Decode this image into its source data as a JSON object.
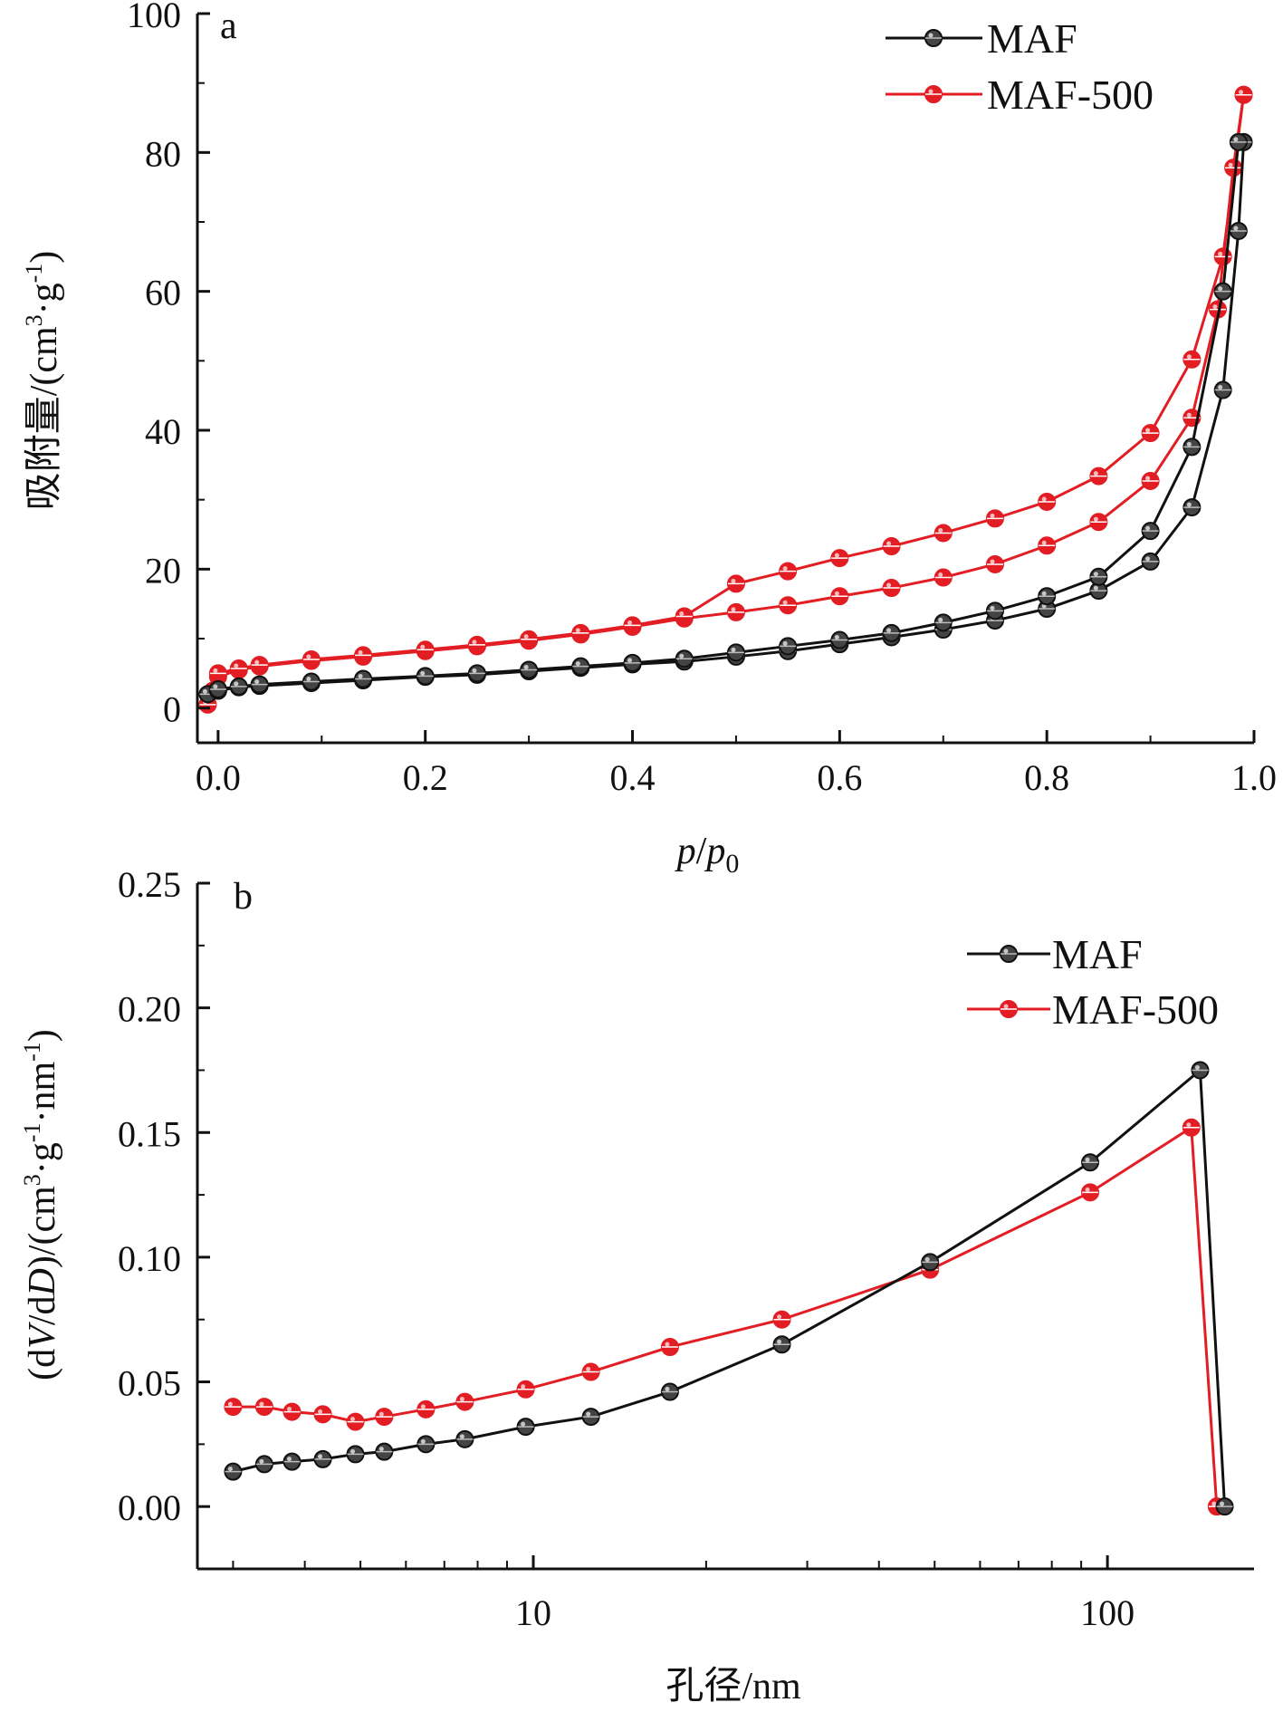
{
  "chart_data": [
    {
      "type": "line",
      "panel_label": "a",
      "xlabel": "p/p0",
      "xlabel_parts": {
        "p": "p",
        "slash": "/",
        "p0_base": "p",
        "p0_sub": "0"
      },
      "ylabel": "吸附量/(cm3·g-1)",
      "ylabel_parts": {
        "main": "吸附量/(cm",
        "sup1": "3",
        "mid": "·g",
        "sup2": "-1",
        "end": ")"
      },
      "xlim": [
        -0.02,
        1.0
      ],
      "ylim": [
        -5,
        100
      ],
      "xticks": [
        "0.0",
        "0.2",
        "0.4",
        "0.6",
        "0.8",
        "1.0"
      ],
      "xtick_values": [
        0,
        0.2,
        0.4,
        0.6,
        0.8,
        1.0
      ],
      "yticks": [
        "0",
        "20",
        "40",
        "60",
        "80",
        "100"
      ],
      "ytick_values": [
        0,
        20,
        40,
        60,
        80,
        100
      ],
      "legend_position": "top-right",
      "series": [
        {
          "name": "MAF",
          "color": "#111111",
          "marker_fill": "#444444",
          "x": [
            -0.01,
            0.0,
            0.02,
            0.04,
            0.09,
            0.14,
            0.2,
            0.25,
            0.3,
            0.35,
            0.4,
            0.45,
            0.5,
            0.55,
            0.6,
            0.65,
            0.7,
            0.75,
            0.8,
            0.85,
            0.9,
            0.94,
            0.97,
            0.985,
            0.99,
            0.985,
            0.97,
            0.94,
            0.9,
            0.85,
            0.8,
            0.75,
            0.7,
            0.65,
            0.6,
            0.55,
            0.5,
            0.45,
            0.4,
            0.35,
            0.3,
            0.25,
            0.2,
            0.14,
            0.09,
            0.04,
            0.02,
            0.0
          ],
          "y": [
            2.0,
            2.5,
            3.0,
            3.2,
            3.6,
            4.0,
            4.5,
            4.8,
            5.3,
            5.8,
            6.3,
            6.7,
            7.4,
            8.2,
            9.2,
            10.2,
            11.3,
            12.6,
            14.3,
            16.9,
            21.1,
            28.9,
            45.8,
            68.7,
            81.5,
            81.5,
            60.0,
            37.6,
            25.5,
            18.9,
            16.1,
            14.0,
            12.3,
            10.8,
            9.8,
            8.9,
            8.0,
            7.1,
            6.5,
            6.0,
            5.5,
            5.0,
            4.6,
            4.2,
            3.8,
            3.4,
            3.1,
            2.7
          ]
        },
        {
          "name": "MAF-500",
          "color": "#e21d23",
          "marker_fill": "#e21d23",
          "x": [
            -0.01,
            -0.005,
            0.0,
            0.02,
            0.04,
            0.09,
            0.14,
            0.2,
            0.25,
            0.3,
            0.35,
            0.4,
            0.45,
            0.5,
            0.55,
            0.6,
            0.65,
            0.7,
            0.75,
            0.8,
            0.85,
            0.9,
            0.94,
            0.965,
            0.98,
            0.99,
            0.99,
            0.97,
            0.94,
            0.9,
            0.85,
            0.8,
            0.75,
            0.7,
            0.65,
            0.6,
            0.55,
            0.5,
            0.45,
            0.4,
            0.35,
            0.3,
            0.25,
            0.2,
            0.14,
            0.09,
            0.04,
            0.02,
            0.0
          ],
          "y": [
            0.5,
            2.5,
            4.5,
            5.5,
            6.0,
            6.8,
            7.4,
            8.2,
            8.9,
            9.7,
            10.6,
            11.7,
            12.9,
            13.8,
            14.8,
            16.1,
            17.3,
            18.8,
            20.7,
            23.4,
            26.8,
            32.7,
            41.8,
            57.4,
            77.8,
            88.3,
            88.3,
            65.0,
            50.2,
            39.6,
            33.4,
            29.7,
            27.3,
            25.2,
            23.3,
            21.6,
            19.7,
            17.9,
            13.2,
            11.9,
            10.8,
            9.9,
            9.1,
            8.4,
            7.6,
            7.0,
            6.2,
            5.7,
            5.0
          ]
        }
      ]
    },
    {
      "type": "line",
      "panel_label": "b",
      "xlabel": "孔径/nm",
      "ylabel": "(dV/dD)/(cm3·g-1·nm-1)",
      "ylabel_parts": {
        "a": "(d",
        "V": "V",
        "b": "/d",
        "D": "D",
        "c": ")/(cm",
        "s1": "3",
        "d": "·g",
        "s2": "-1",
        "e": "·nm",
        "s3": "-1",
        "f": ")"
      },
      "x_scale": "log",
      "xlim": [
        2.6,
        180
      ],
      "ylim": [
        -0.025,
        0.25
      ],
      "xticks": [
        "10",
        "100"
      ],
      "xtick_values": [
        10,
        100
      ],
      "yticks": [
        "0.00",
        "0.05",
        "0.10",
        "0.15",
        "0.20",
        "0.25"
      ],
      "ytick_values": [
        0,
        0.05,
        0.1,
        0.15,
        0.2,
        0.25
      ],
      "legend_position": "top-right",
      "series": [
        {
          "name": "MAF",
          "color": "#111111",
          "marker_fill": "#444444",
          "x": [
            3.0,
            3.4,
            3.8,
            4.3,
            4.9,
            5.5,
            6.5,
            7.6,
            9.7,
            12.6,
            17.3,
            27.1,
            49.1,
            93.3,
            145.0,
            160.0
          ],
          "y": [
            0.014,
            0.017,
            0.018,
            0.019,
            0.021,
            0.022,
            0.025,
            0.027,
            0.032,
            0.036,
            0.046,
            0.065,
            0.098,
            0.138,
            0.175,
            0.0
          ]
        },
        {
          "name": "MAF-500",
          "color": "#e21d23",
          "marker_fill": "#e21d23",
          "x": [
            3.0,
            3.4,
            3.8,
            4.3,
            4.9,
            5.5,
            6.5,
            7.6,
            9.7,
            12.6,
            17.3,
            27.1,
            49.1,
            93.3,
            140.0,
            155.0
          ],
          "y": [
            0.04,
            0.04,
            0.038,
            0.037,
            0.034,
            0.036,
            0.039,
            0.042,
            0.047,
            0.054,
            0.064,
            0.075,
            0.095,
            0.126,
            0.152,
            0.0
          ]
        }
      ]
    }
  ]
}
